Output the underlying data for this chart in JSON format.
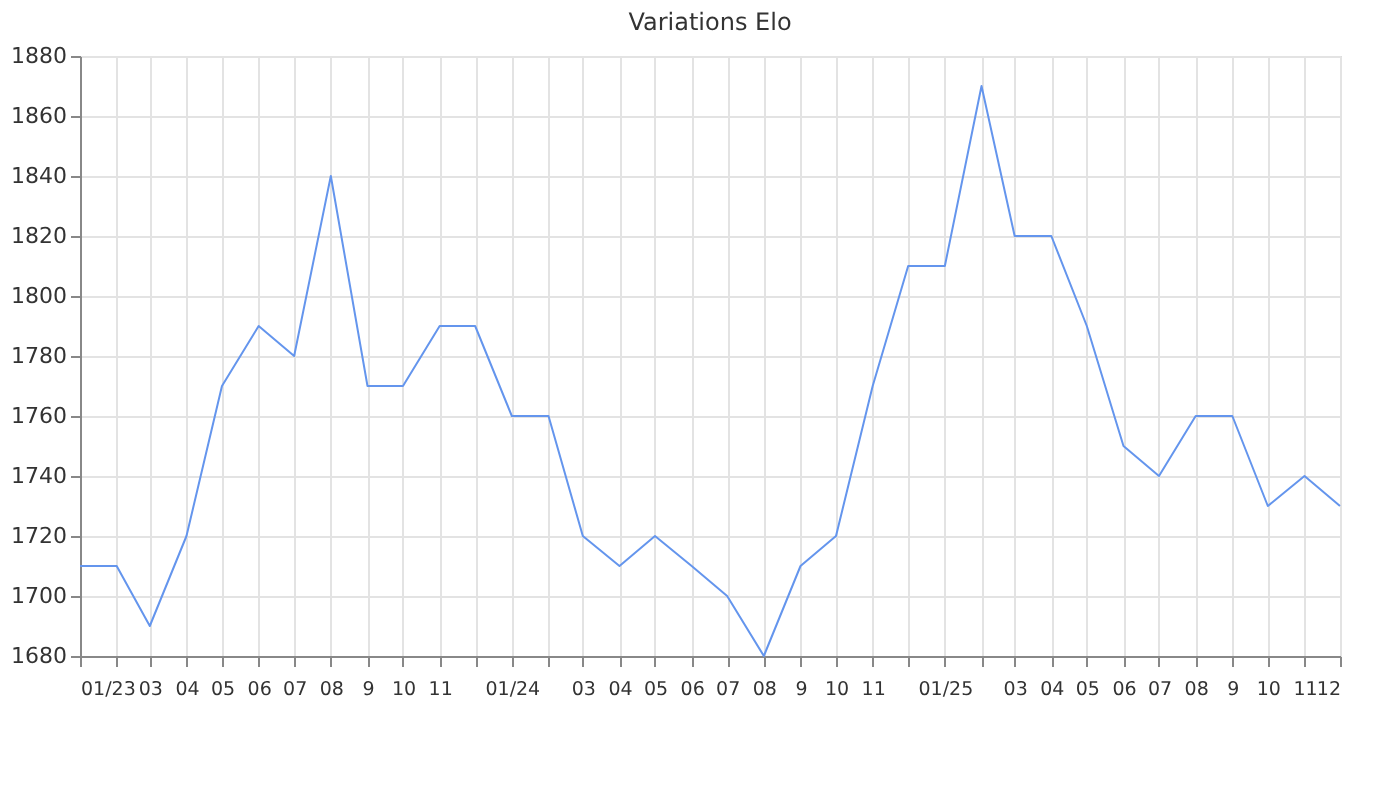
{
  "chart_data": {
    "type": "line",
    "title": "Variations Elo",
    "x": [
      "2023-01",
      "2023-02",
      "2023-03",
      "2023-04",
      "2023-05",
      "2023-06",
      "2023-07",
      "2023-08",
      "2023-09",
      "2023-10",
      "2023-11",
      "2023-12",
      "2024-01",
      "2024-02",
      "2024-03",
      "2024-04",
      "2024-05",
      "2024-06",
      "2024-07",
      "2024-08",
      "2024-09",
      "2024-10",
      "2024-11",
      "2024-12",
      "2025-01",
      "2025-02",
      "2025-03",
      "2025-04",
      "2025-05",
      "2025-06",
      "2025-07",
      "2025-08",
      "2025-09",
      "2025-10",
      "2025-11",
      "2025-12"
    ],
    "series": [
      {
        "color": "#6495ed",
        "values": [
          1710,
          1710,
          1690,
          1720,
          1770,
          1790,
          1780,
          1840,
          1770,
          1770,
          1790,
          1790,
          1760,
          1760,
          1720,
          1710,
          1720,
          1710,
          1700,
          1680,
          1710,
          1720,
          1770,
          1810,
          1810,
          1870,
          1820,
          1820,
          1790,
          1750,
          1740,
          1760,
          1760,
          1730,
          1740,
          1730
        ]
      }
    ],
    "xlim": [
      "2023-01",
      "2025-12"
    ],
    "xticks": [
      {
        "value": "2023-01",
        "label": "01/23"
      },
      {
        "value": "2023-02",
        "label": null
      },
      {
        "value": "2023-03",
        "label": "03"
      },
      {
        "value": "2023-04",
        "label": "04"
      },
      {
        "value": "2023-05",
        "label": "05"
      },
      {
        "value": "2023-06",
        "label": "06"
      },
      {
        "value": "2023-07",
        "label": "07"
      },
      {
        "value": "2023-08",
        "label": "08"
      },
      {
        "value": "2023-09",
        "label": "9"
      },
      {
        "value": "2023-10",
        "label": "10"
      },
      {
        "value": "2023-11",
        "label": "11"
      },
      {
        "value": "2023-12",
        "label": null
      },
      {
        "value": "2024-01",
        "label": "01/24"
      },
      {
        "value": "2024-02",
        "label": null
      },
      {
        "value": "2024-03",
        "label": "03"
      },
      {
        "value": "2024-04",
        "label": "04"
      },
      {
        "value": "2024-05",
        "label": "05"
      },
      {
        "value": "2024-06",
        "label": "06"
      },
      {
        "value": "2024-07",
        "label": "07"
      },
      {
        "value": "2024-08",
        "label": "08"
      },
      {
        "value": "2024-09",
        "label": "9"
      },
      {
        "value": "2024-10",
        "label": "10"
      },
      {
        "value": "2024-11",
        "label": "11"
      },
      {
        "value": "2024-12",
        "label": null
      },
      {
        "value": "2025-01",
        "label": "01/25"
      },
      {
        "value": "2025-02",
        "label": null
      },
      {
        "value": "2025-03",
        "label": "03"
      },
      {
        "value": "2025-04",
        "label": "04"
      },
      {
        "value": "2025-05",
        "label": "05"
      },
      {
        "value": "2025-06",
        "label": "06"
      },
      {
        "value": "2025-07",
        "label": "07"
      },
      {
        "value": "2025-08",
        "label": "08"
      },
      {
        "value": "2025-09",
        "label": "9"
      },
      {
        "value": "2025-10",
        "label": "10"
      },
      {
        "value": "2025-11",
        "label": "11"
      },
      {
        "value": "2025-12",
        "label": "12"
      }
    ],
    "ylim": [
      1680,
      1880
    ],
    "yticks": [
      1680,
      1700,
      1720,
      1740,
      1760,
      1780,
      1800,
      1820,
      1840,
      1860,
      1880
    ],
    "grid": true,
    "marker": "none",
    "line_style": "solid",
    "legend": false
  }
}
